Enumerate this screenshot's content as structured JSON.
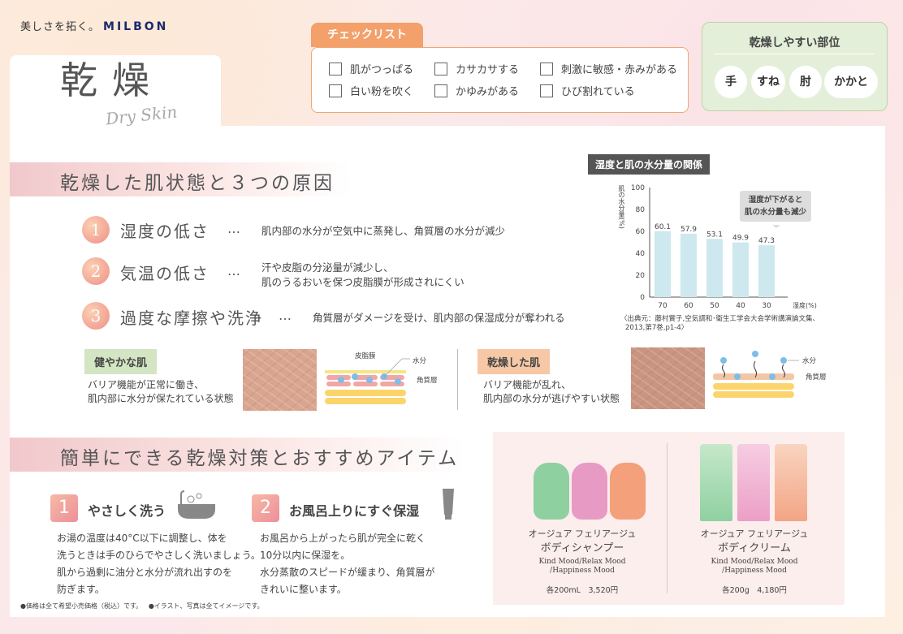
{
  "brand": {
    "tagline": "美しさを拓く。",
    "name": "MILBON"
  },
  "title": {
    "main": "乾燥",
    "sub": "Dry Skin"
  },
  "checklist": {
    "title": "チェックリスト",
    "items": [
      "肌がつっぱる",
      "カサカサする",
      "刺激に敏感・赤みがある",
      "白い粉を吹く",
      "かゆみがある",
      "ひび割れている"
    ]
  },
  "body_parts": {
    "title": "乾燥しやすい部位",
    "items": [
      "手",
      "すね",
      "肘",
      "かかと"
    ]
  },
  "section1": {
    "title": "乾燥した肌状態と３つの原因",
    "causes": [
      {
        "num": "1",
        "title": "湿度の低さ",
        "dots": "…",
        "desc": [
          "肌内部の水分が空気中に蒸発し、角質層の水分が減少"
        ]
      },
      {
        "num": "2",
        "title": "気温の低さ",
        "dots": "…",
        "desc": [
          "汗や皮脂の分泌量が減少し、",
          "肌のうるおいを保つ皮脂膜が形成されにくい"
        ]
      },
      {
        "num": "3",
        "title": "過度な摩擦や洗浄",
        "dots": "…",
        "desc": [
          "角質層がダメージを受け、肌内部の保湿成分が奪われる"
        ]
      }
    ]
  },
  "chart_data": {
    "type": "bar",
    "title": "湿度と肌の水分量の関係",
    "categories": [
      "70",
      "60",
      "50",
      "40",
      "30"
    ],
    "values": [
      60.1,
      57.9,
      53.1,
      49.9,
      47.3
    ],
    "xlabel": "湿度(%)",
    "ylabel": "肌の水分量(%)",
    "ylim": [
      0,
      100
    ],
    "yticks": [
      0,
      20,
      40,
      60,
      80,
      100
    ],
    "bar_color": "#cde8ee",
    "annotation": [
      "湿度が下がると",
      "肌の水分量も減少"
    ],
    "source": [
      "〈出典元：藤村實子,空気調和･衛生工学会大会学術講演論文集、",
      "2013,第7巻,p1-4〉"
    ]
  },
  "healthy": {
    "label": "健やかな肌",
    "desc": [
      "バリア機能が正常に働き、",
      "肌内部に水分が保たれている状態"
    ],
    "diagram": {
      "film": "皮脂膜",
      "water": "水分",
      "layer": "角質層"
    }
  },
  "dry": {
    "label": "乾燥した肌",
    "desc": [
      "バリア機能が乱れ、",
      "肌内部の水分が逃げやすい状態"
    ],
    "diagram": {
      "water": "水分",
      "layer": "角質層"
    }
  },
  "section2": {
    "title": "簡単にできる乾燥対策とおすすめアイテム",
    "steps": [
      {
        "num": "1",
        "title": "やさしく洗う",
        "icon": "bathtub-icon",
        "body": [
          "お湯の温度は40°C以下に調整し、体を",
          "洗うときは手のひらでやさしく洗いましょう。",
          "肌から過剰に油分と水分が流れ出すのを",
          "防ぎます。"
        ]
      },
      {
        "num": "2",
        "title": "お風呂上りにすぐ保湿",
        "icon": "cream-tube-icon",
        "body": [
          "お風呂から上がったら肌が完全に乾く",
          "10分以内に保湿を。",
          "水分蒸散のスピードが緩まり、角質層が",
          "きれいに整います。"
        ]
      }
    ]
  },
  "products": [
    {
      "series": "オージュア フェリアージュ",
      "name": "ボディシャンプー",
      "variants": [
        "Kind Mood/Relax Mood",
        "/Happiness Mood"
      ],
      "price": "各200mL　3,520円",
      "colors": [
        "#8fd0a0",
        "#e79ac4",
        "#f3a07b"
      ]
    },
    {
      "series": "オージュア フェリアージュ",
      "name": "ボディクリーム",
      "variants": [
        "Kind Mood/Relax Mood",
        "/Happiness Mood"
      ],
      "price": "各200g　4,180円",
      "colors": [
        "#8fd0a0",
        "#ec9fc6",
        "#f3a584"
      ]
    }
  ],
  "footnotes": [
    "●価格は全て希望小売価格（税込）です。",
    "●イラスト、写真は全てイメージです。"
  ]
}
